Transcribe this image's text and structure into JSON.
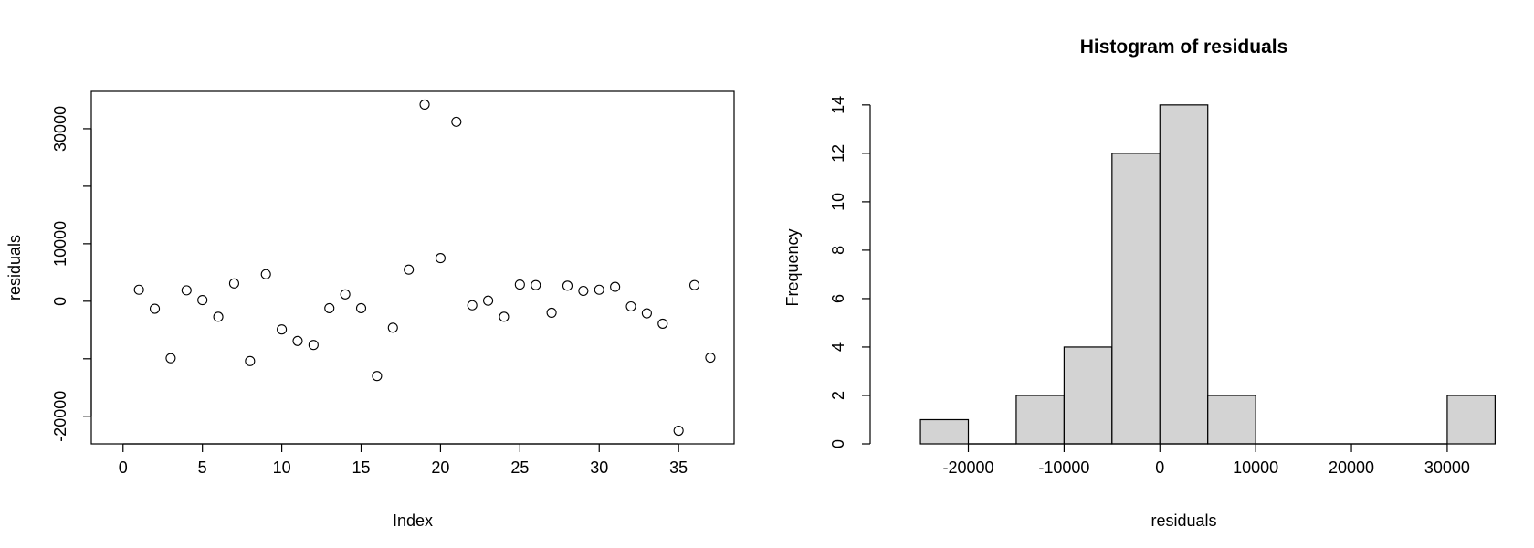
{
  "chart_data": [
    {
      "type": "scatter",
      "title": "",
      "xlabel": "Index",
      "ylabel": "residuals",
      "xlim": [
        -2,
        38.5
      ],
      "ylim": [
        -24800,
        36500
      ],
      "x_ticks": [
        0,
        5,
        10,
        15,
        20,
        25,
        30,
        35
      ],
      "y_ticks": [
        -20000,
        -10000,
        0,
        10000,
        20000,
        30000
      ],
      "y_tick_labels": [
        "-20000",
        "",
        "0",
        "10000",
        "",
        "30000"
      ],
      "box": true,
      "grid": false,
      "marker": "open-circle",
      "series": [
        {
          "x": [
            1,
            2,
            3,
            4,
            5,
            6,
            7,
            8,
            9,
            10,
            11,
            12,
            13,
            14,
            15,
            16,
            17,
            18,
            19,
            20,
            21,
            22,
            23,
            24,
            25,
            26,
            27,
            28,
            29,
            30,
            31,
            32,
            33,
            34,
            35,
            36,
            37
          ],
          "values": [
            2000,
            -1300,
            -9900,
            1900,
            200,
            -2700,
            3100,
            -10400,
            4700,
            -4900,
            -6900,
            -7600,
            -1200,
            1200,
            -1200,
            -13000,
            -4600,
            5500,
            34200,
            7500,
            31200,
            -700,
            100,
            -2700,
            2900,
            2800,
            -2000,
            2700,
            1800,
            2000,
            2500,
            -900,
            -2100,
            -3900,
            -22500,
            2800,
            -9800
          ]
        }
      ]
    },
    {
      "type": "bar",
      "subtype": "histogram",
      "title": "Histogram of residuals",
      "xlabel": "residuals",
      "ylabel": "Frequency",
      "bin_edges": [
        -25000,
        -20000,
        -15000,
        -10000,
        -5000,
        0,
        5000,
        10000,
        15000,
        20000,
        25000,
        30000,
        35000
      ],
      "values": [
        1,
        0,
        2,
        4,
        12,
        14,
        2,
        0,
        0,
        0,
        0,
        2
      ],
      "xlim": [
        -30250,
        35250
      ],
      "ylim": [
        0,
        14.56
      ],
      "x_ticks": [
        -20000,
        -10000,
        0,
        10000,
        20000,
        30000
      ],
      "y_ticks": [
        0,
        2,
        4,
        6,
        8,
        10,
        12,
        14
      ],
      "bar_color": "#d3d3d3",
      "grid": false
    }
  ]
}
